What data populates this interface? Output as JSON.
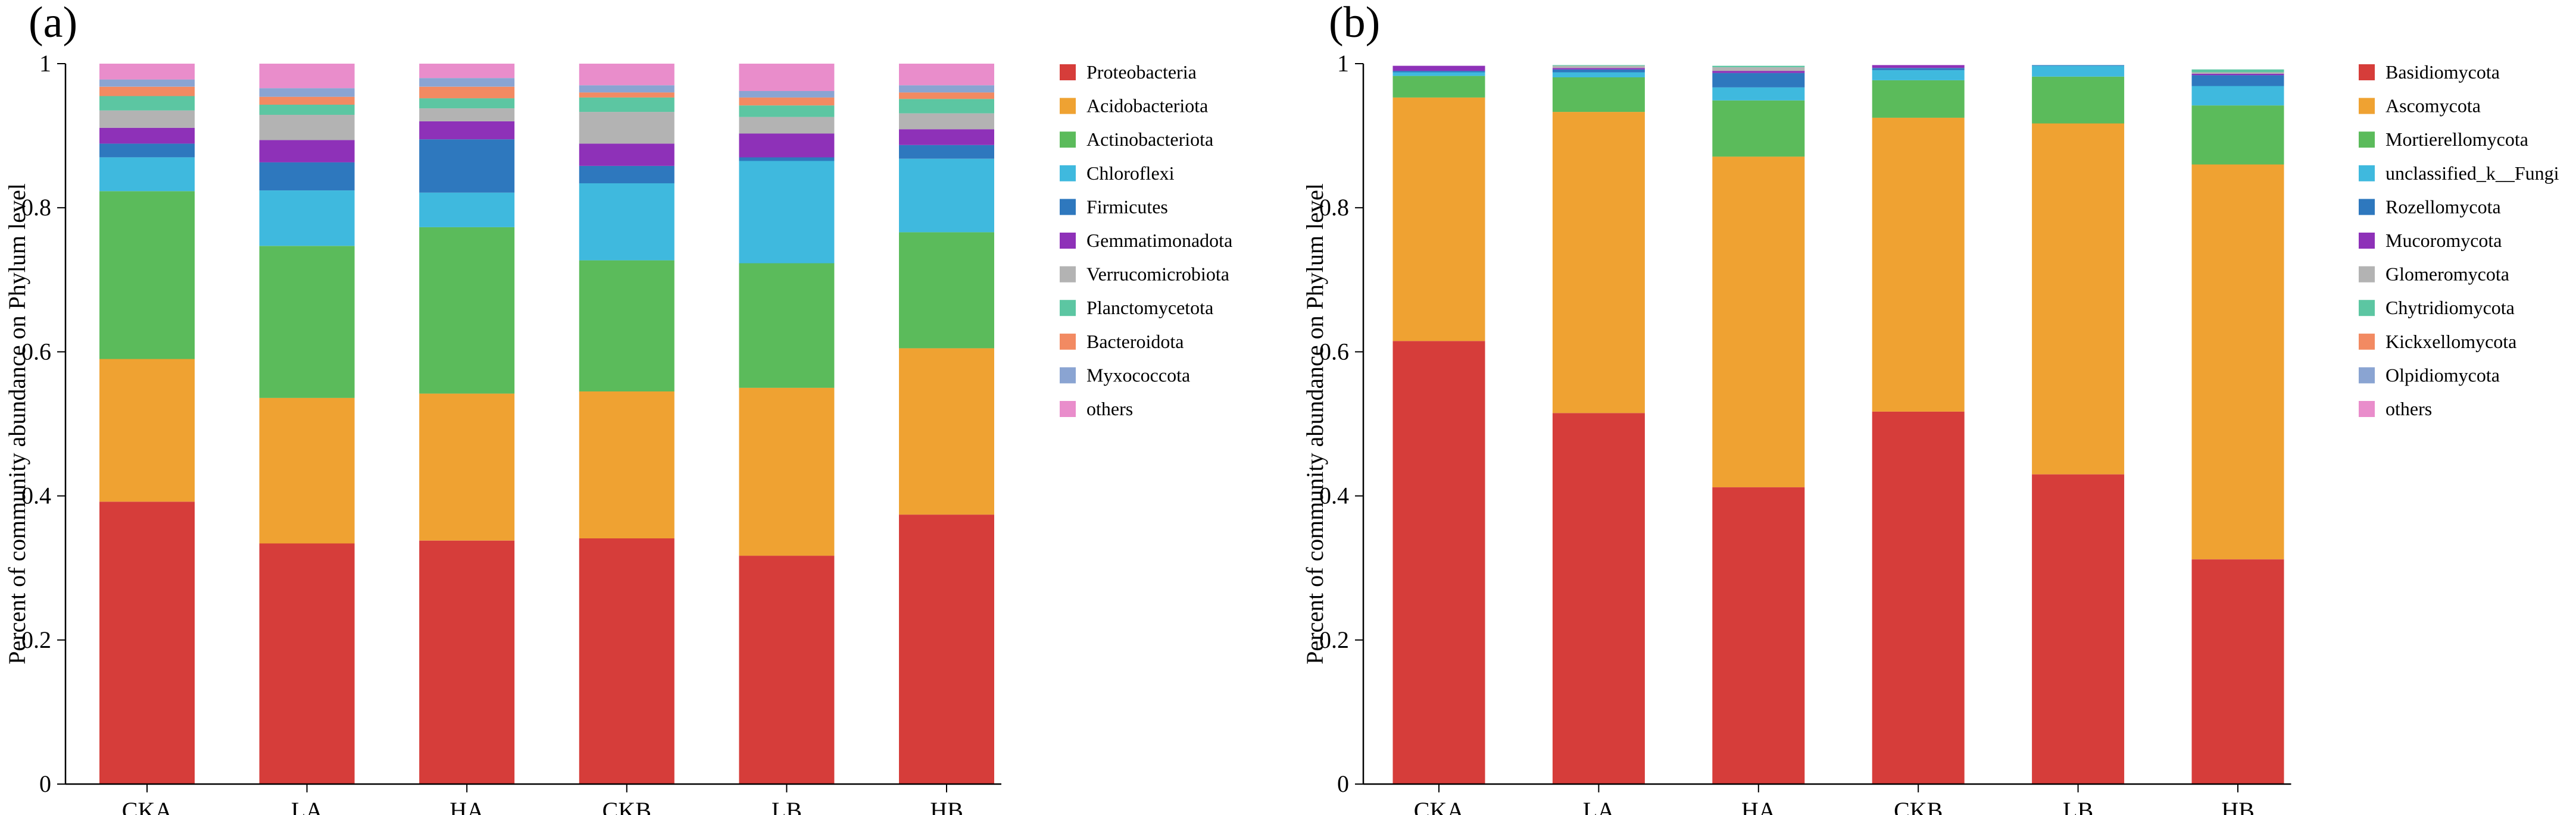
{
  "figure": {
    "panels": [
      "(a)",
      "(b)"
    ]
  },
  "chart_data": [
    {
      "type": "bar",
      "stacked": true,
      "panel_label": "(a)",
      "title": "",
      "xlabel": "",
      "ylabel": "Percent of community abundance on Phylum level",
      "ylim": [
        0,
        1
      ],
      "yticks": [
        "0",
        "0.2",
        "0.4",
        "0.6",
        "0.8",
        "1"
      ],
      "ytick_values": [
        0,
        0.2,
        0.4,
        0.6,
        0.8,
        1
      ],
      "categories": [
        "CKA",
        "LA",
        "HA",
        "CKB",
        "LB",
        "HB"
      ],
      "legend_position": "right",
      "series": [
        {
          "name": "Proteobacteria",
          "color": "#d63d3a",
          "values": [
            0.392,
            0.334,
            0.338,
            0.341,
            0.317,
            0.374
          ]
        },
        {
          "name": "Acidobacteriota",
          "color": "#efa232",
          "values": [
            0.198,
            0.202,
            0.204,
            0.204,
            0.233,
            0.231
          ]
        },
        {
          "name": "Actinobacteriota",
          "color": "#5bbb5b",
          "values": [
            0.233,
            0.211,
            0.231,
            0.182,
            0.173,
            0.161
          ]
        },
        {
          "name": "Chloroflexi",
          "color": "#3fb9de",
          "values": [
            0.047,
            0.077,
            0.048,
            0.107,
            0.142,
            0.102
          ]
        },
        {
          "name": "Firmicutes",
          "color": "#2e78be",
          "values": [
            0.019,
            0.039,
            0.074,
            0.024,
            0.005,
            0.019
          ]
        },
        {
          "name": "Gemmatimonadota",
          "color": "#8e31b8",
          "values": [
            0.022,
            0.031,
            0.025,
            0.031,
            0.033,
            0.022
          ]
        },
        {
          "name": "Verrucomicrobiota",
          "color": "#b3b3b3",
          "values": [
            0.024,
            0.035,
            0.018,
            0.044,
            0.023,
            0.022
          ]
        },
        {
          "name": "Planctomycetota",
          "color": "#5cc6a2",
          "values": [
            0.02,
            0.014,
            0.014,
            0.02,
            0.016,
            0.02
          ]
        },
        {
          "name": "Bacteroidota",
          "color": "#f28a62",
          "values": [
            0.013,
            0.011,
            0.016,
            0.007,
            0.011,
            0.009
          ]
        },
        {
          "name": "Myxococcota",
          "color": "#8aa4d2",
          "values": [
            0.01,
            0.012,
            0.012,
            0.01,
            0.009,
            0.01
          ]
        },
        {
          "name": "others",
          "color": "#e98dcb",
          "values": [
            0.022,
            0.034,
            0.02,
            0.03,
            0.038,
            0.03
          ]
        }
      ]
    },
    {
      "type": "bar",
      "stacked": true,
      "panel_label": "(b)",
      "title": "",
      "xlabel": "",
      "ylabel": "Percent of community abundance on Phylum level",
      "ylim": [
        0,
        1
      ],
      "yticks": [
        "0",
        "0.2",
        "0.4",
        "0.6",
        "0.8",
        "1"
      ],
      "ytick_values": [
        0,
        0.2,
        0.4,
        0.6,
        0.8,
        1
      ],
      "categories": [
        "CKA",
        "LA",
        "HA",
        "CKB",
        "LB",
        "HB"
      ],
      "legend_position": "right",
      "series": [
        {
          "name": "Basidiomycota",
          "color": "#d63d3a",
          "values": [
            0.615,
            0.515,
            0.412,
            0.517,
            0.43,
            0.312
          ]
        },
        {
          "name": "Ascomycota",
          "color": "#efa232",
          "values": [
            0.338,
            0.418,
            0.459,
            0.408,
            0.487,
            0.548
          ]
        },
        {
          "name": "Mortierellomycota",
          "color": "#5bbb5b",
          "values": [
            0.03,
            0.048,
            0.078,
            0.052,
            0.065,
            0.082
          ]
        },
        {
          "name": "unclassified_k__Fungi",
          "color": "#3fb9de",
          "values": [
            0.005,
            0.007,
            0.018,
            0.014,
            0.015,
            0.027
          ]
        },
        {
          "name": "Rozellomycota",
          "color": "#2e78be",
          "values": [
            0.002,
            0.004,
            0.02,
            0.003,
            0.001,
            0.015
          ]
        },
        {
          "name": "Mucoromycota",
          "color": "#8e31b8",
          "values": [
            0.007,
            0.002,
            0.003,
            0.004,
            0.0,
            0.002
          ]
        },
        {
          "name": "Glomeromycota",
          "color": "#b3b3b3",
          "values": [
            0.0,
            0.003,
            0.005,
            0.0,
            0.0,
            0.002
          ]
        },
        {
          "name": "Chytridiomycota",
          "color": "#5cc6a2",
          "values": [
            0.0,
            0.001,
            0.002,
            0.0,
            0.0,
            0.004
          ]
        },
        {
          "name": "Kickxellomycota",
          "color": "#f28a62",
          "values": [
            0.0,
            0.0,
            0.0,
            0.0,
            0.0,
            0.0
          ]
        },
        {
          "name": "Olpidiomycota",
          "color": "#8aa4d2",
          "values": [
            0.0,
            0.0,
            0.0,
            0.0,
            0.0,
            0.0
          ]
        },
        {
          "name": "others",
          "color": "#e98dcb",
          "values": [
            0.0,
            0.0,
            0.0,
            0.0,
            0.0,
            0.0
          ]
        }
      ]
    }
  ]
}
